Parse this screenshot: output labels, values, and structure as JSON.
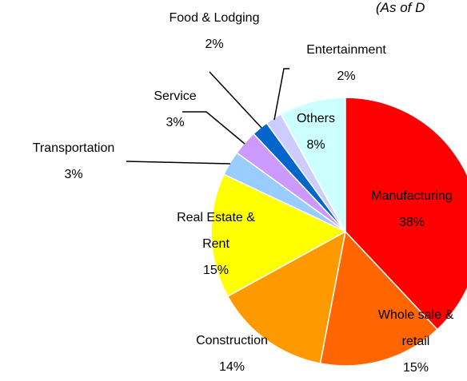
{
  "chart_data": {
    "type": "pie",
    "subtitle": "(As of D",
    "categories": [
      "Manufacturing",
      "Whole sale & retail",
      "Construction",
      "Real Estate & Rent",
      "Transportation",
      "Service",
      "Food & Lodging",
      "Entertainment",
      "Others"
    ],
    "values": [
      38,
      15,
      14,
      15,
      3,
      3,
      2,
      2,
      8
    ],
    "value_labels": [
      "38%",
      "15%",
      "14%",
      "15%",
      "3%",
      "3%",
      "2%",
      "2%",
      "8%"
    ],
    "colors": [
      "#ff0000",
      "#ff6600",
      "#ff9900",
      "#ffff00",
      "#99ccff",
      "#cc99ff",
      "#0066cc",
      "#ccccff",
      "#ccffff"
    ]
  }
}
